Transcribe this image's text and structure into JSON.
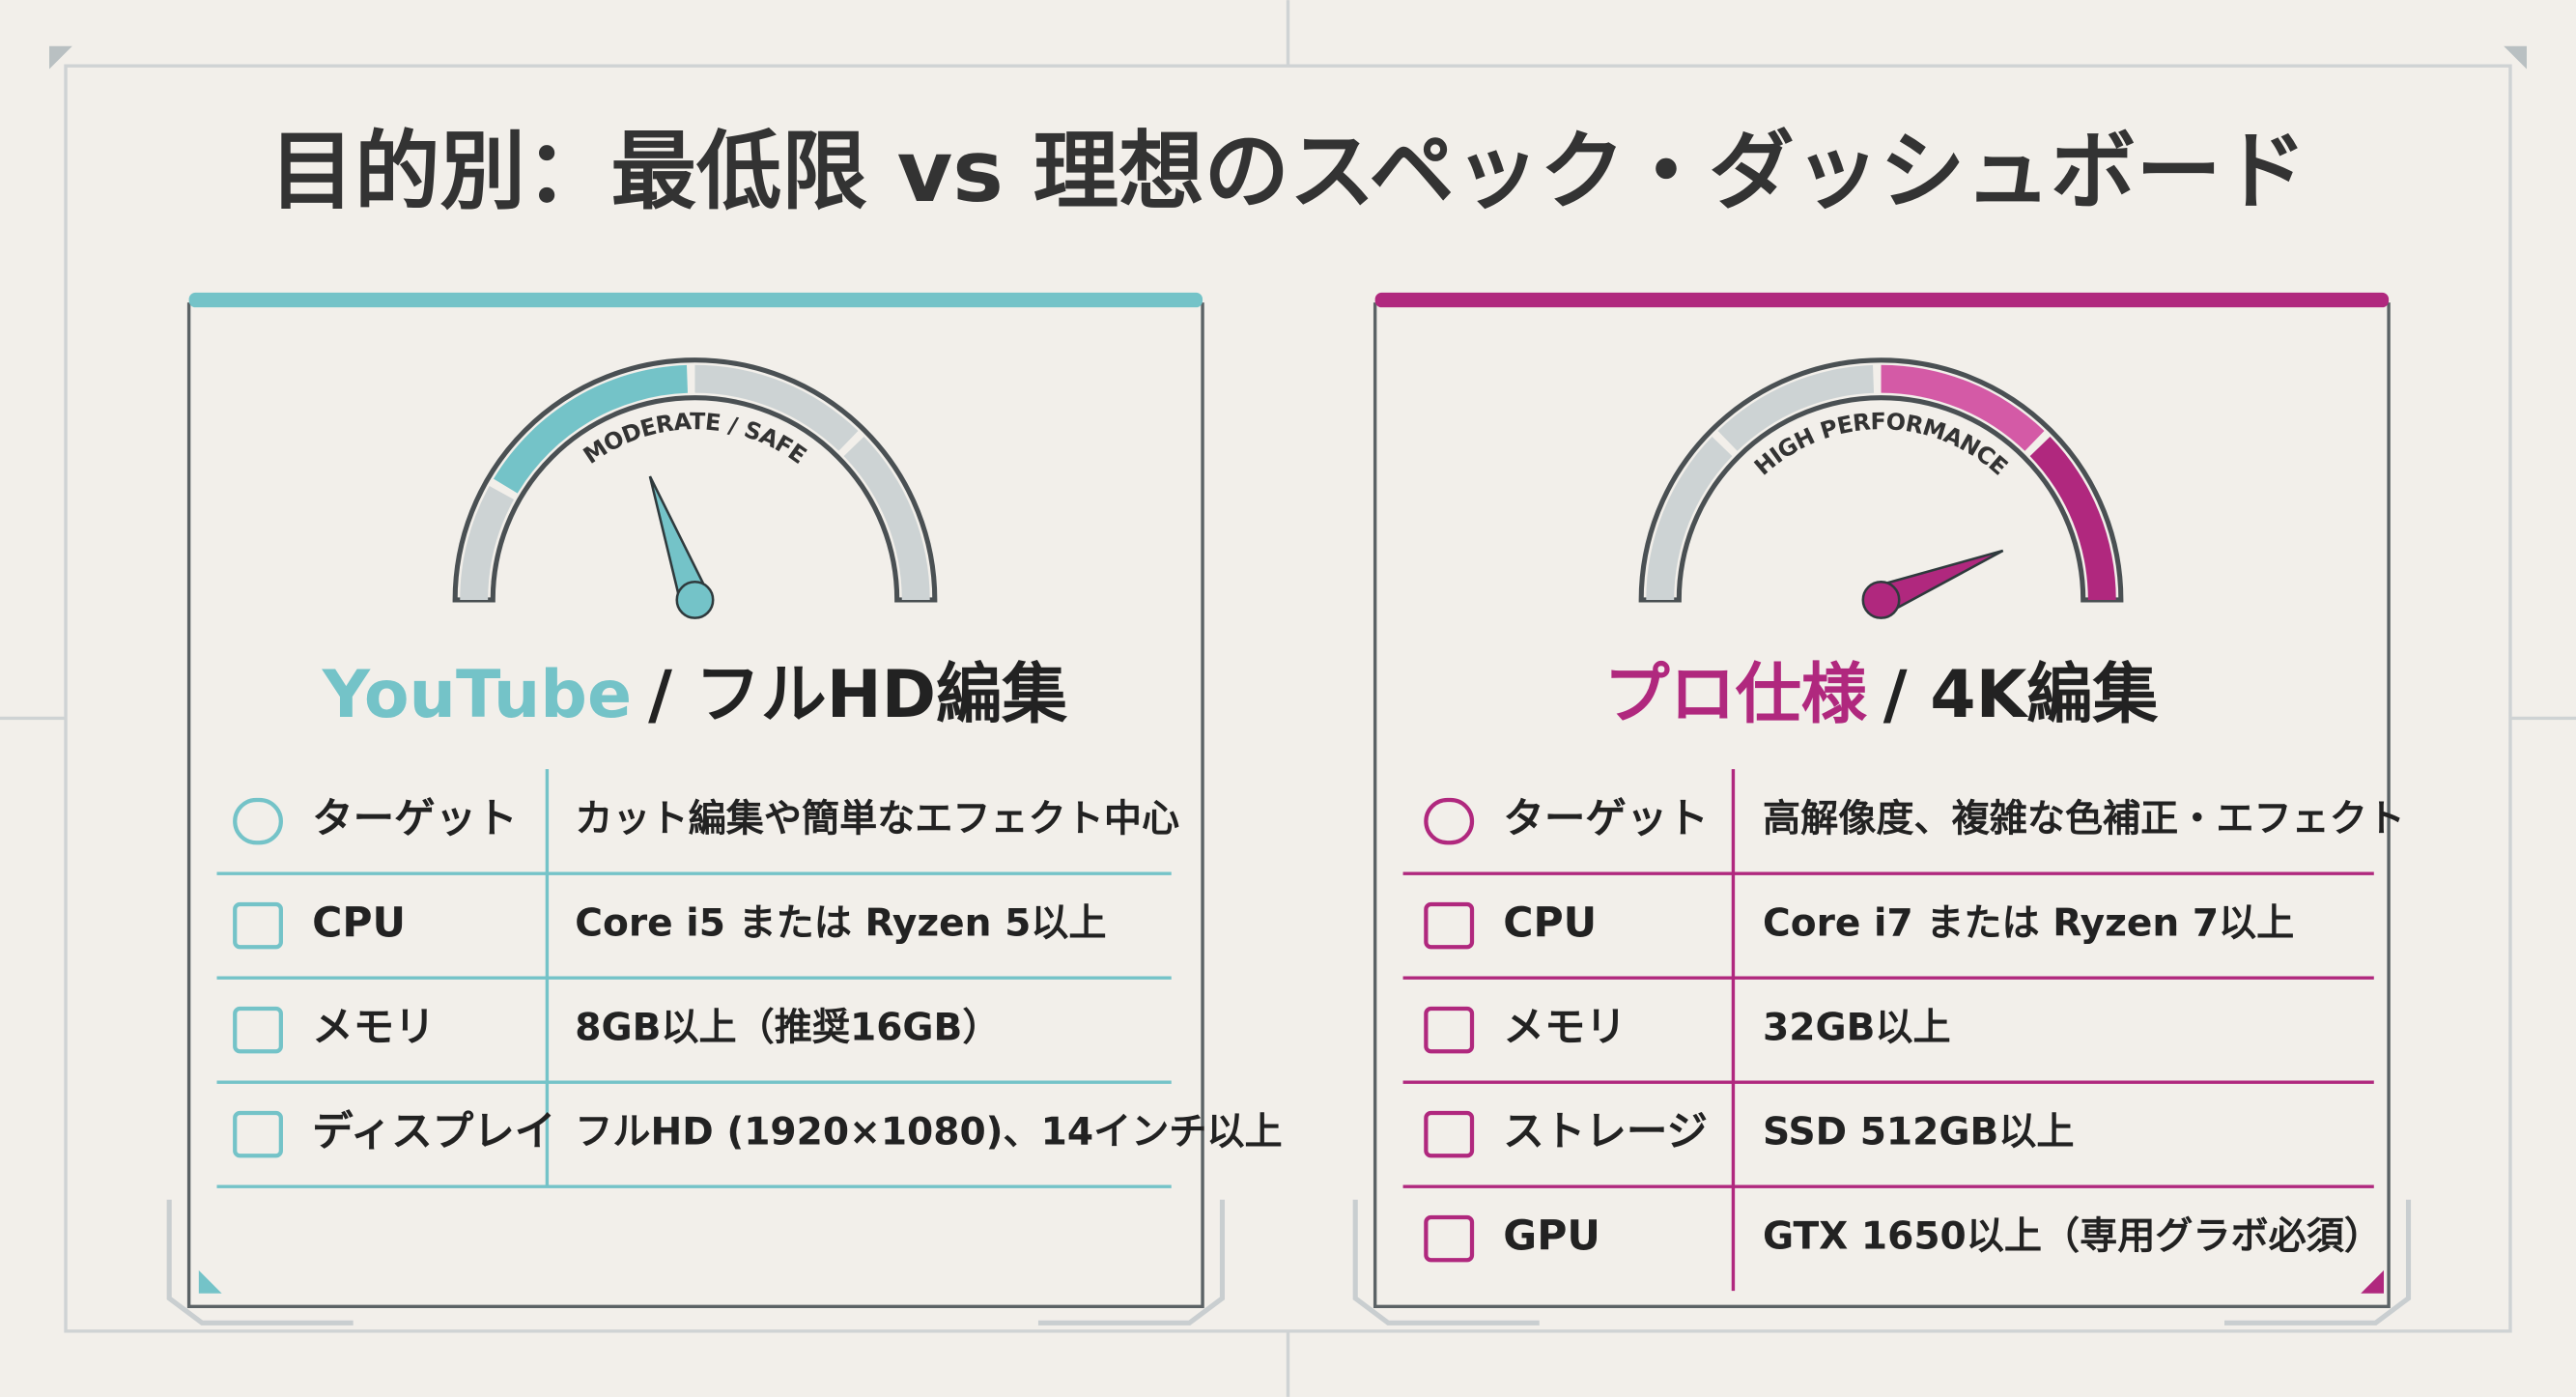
{
  "title": "目的別：最低限 vs 理想のスペック・ダッシュボード",
  "panels": [
    {
      "accent_color": "#74c3c8",
      "gauge_label": "MODERATE / SAFE",
      "heading_accent": "YouTube",
      "heading_rest": "/ フルHD編集",
      "rows": [
        {
          "label": "ターゲット",
          "value": "カット編集や簡単なエフェクト中心"
        },
        {
          "label": "CPU",
          "value": "Core i5 または Ryzen 5以上"
        },
        {
          "label": "メモリ",
          "value": "8GB以上（推奨16GB）"
        },
        {
          "label": "ディスプレイ",
          "value": "フルHD (1920×1080)、14インチ以上"
        }
      ]
    },
    {
      "accent_color": "#b0287e",
      "gauge_label": "HIGH PERFORMANCE",
      "heading_accent": "プロ仕様",
      "heading_rest": "/ 4K編集",
      "rows": [
        {
          "label": "ターゲット",
          "value": "高解像度、複雑な色補正・エフェクト"
        },
        {
          "label": "CPU",
          "value": "Core i7 または Ryzen 7以上"
        },
        {
          "label": "メモリ",
          "value": "32GB以上"
        },
        {
          "label": "ストレージ",
          "value": "SSD 512GB以上"
        },
        {
          "label": "GPU",
          "value": "GTX 1650以上（専用グラボ必須）"
        }
      ]
    }
  ]
}
